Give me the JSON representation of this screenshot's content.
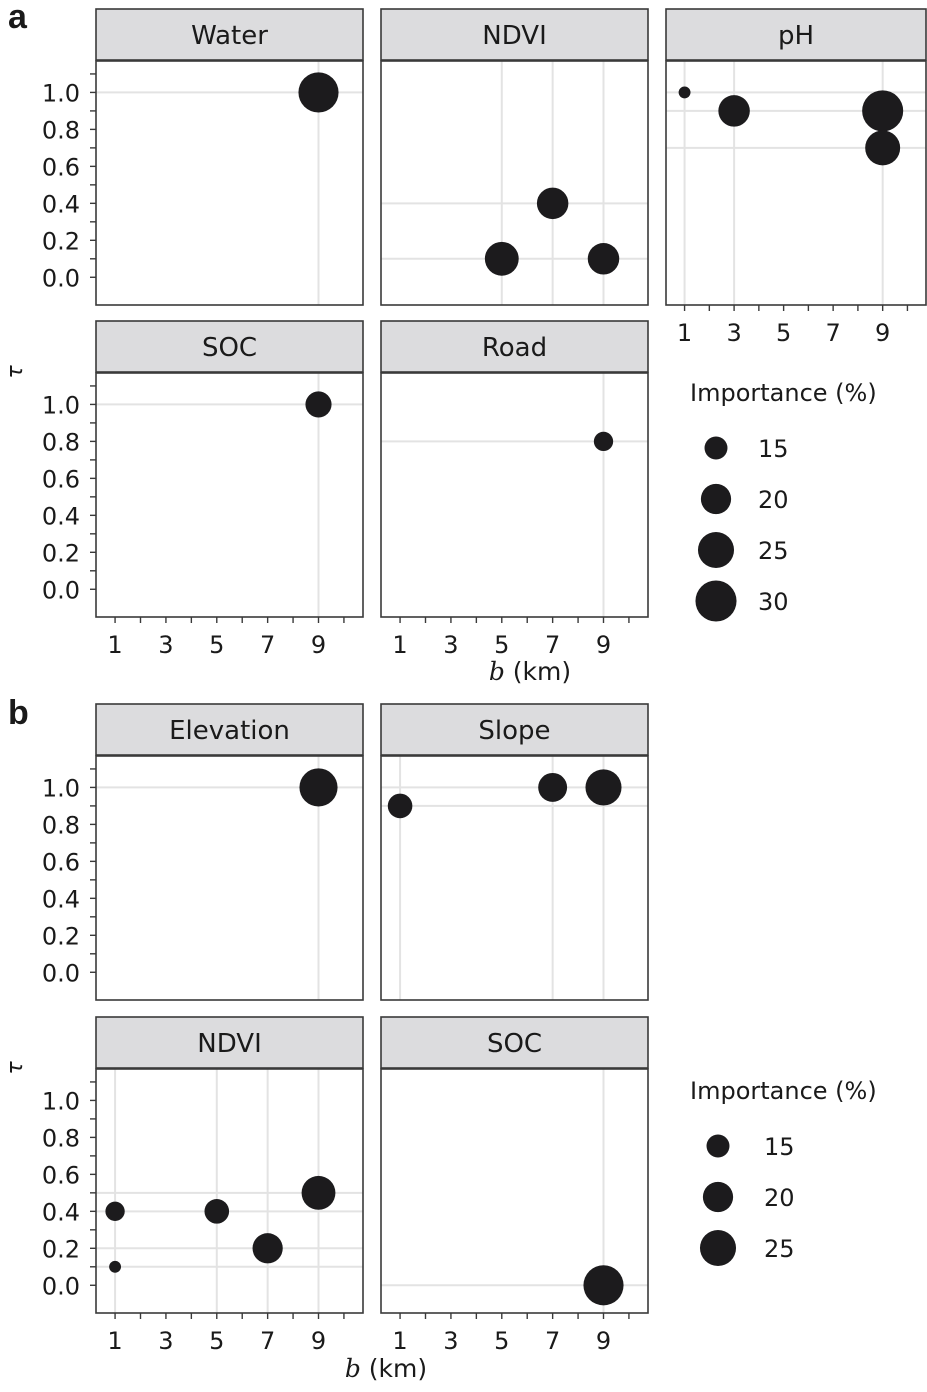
{
  "figure": {
    "panel_a_label": "a",
    "panel_b_label": "b"
  },
  "chart_data": [
    {
      "type": "scatter",
      "subfigure": "a",
      "xlabel_italic": "b",
      "xlabel_unit": " (km)",
      "ylabel": "τ",
      "xlim": [
        0.25,
        10.75
      ],
      "ylim": [
        -0.15,
        1.17
      ],
      "x_ticks": [
        1,
        3,
        5,
        7,
        9
      ],
      "y_ticks": [
        "0.0",
        "0.2",
        "0.4",
        "0.6",
        "0.8",
        "1.0"
      ],
      "grid": true,
      "legend": {
        "title": "Importance (%)",
        "entries": [
          15,
          20,
          25,
          30
        ],
        "position": "right"
      },
      "facets": [
        {
          "title": "Water",
          "points": [
            {
              "x": 9,
              "y": 1.0,
              "importance": 30
            }
          ]
        },
        {
          "title": "NDVI",
          "points": [
            {
              "x": 5,
              "y": 0.1,
              "importance": 24
            },
            {
              "x": 7,
              "y": 0.4,
              "importance": 22
            },
            {
              "x": 9,
              "y": 0.1,
              "importance": 22
            }
          ]
        },
        {
          "title": "pH",
          "points": [
            {
              "x": 1,
              "y": 1.0,
              "importance": 11
            },
            {
              "x": 3,
              "y": 0.9,
              "importance": 22
            },
            {
              "x": 9,
              "y": 0.9,
              "importance": 31
            },
            {
              "x": 9,
              "y": 0.7,
              "importance": 25
            }
          ]
        },
        {
          "title": "SOC",
          "points": [
            {
              "x": 9,
              "y": 1.0,
              "importance": 18
            }
          ]
        },
        {
          "title": "Road",
          "points": [
            {
              "x": 9,
              "y": 0.8,
              "importance": 14
            }
          ]
        }
      ]
    },
    {
      "type": "scatter",
      "subfigure": "b",
      "xlabel_italic": "b",
      "xlabel_unit": " (km)",
      "ylabel": "τ",
      "xlim": [
        0.25,
        10.75
      ],
      "ylim": [
        -0.15,
        1.17
      ],
      "x_ticks": [
        1,
        3,
        5,
        7,
        9
      ],
      "y_ticks": [
        "0.0",
        "0.2",
        "0.4",
        "0.6",
        "0.8",
        "1.0"
      ],
      "grid": true,
      "legend": {
        "title": "Importance (%)",
        "entries": [
          15,
          20,
          25
        ],
        "position": "right"
      },
      "facets": [
        {
          "title": "Elevation",
          "points": [
            {
              "x": 9,
              "y": 1.0,
              "importance": 28
            }
          ]
        },
        {
          "title": "Slope",
          "points": [
            {
              "x": 1,
              "y": 0.9,
              "importance": 17
            },
            {
              "x": 7,
              "y": 1.0,
              "importance": 20
            },
            {
              "x": 9,
              "y": 1.0,
              "importance": 26
            }
          ]
        },
        {
          "title": "NDVI",
          "points": [
            {
              "x": 1,
              "y": 0.4,
              "importance": 14
            },
            {
              "x": 1,
              "y": 0.1,
              "importance": 11
            },
            {
              "x": 5,
              "y": 0.4,
              "importance": 17
            },
            {
              "x": 7,
              "y": 0.2,
              "importance": 21
            },
            {
              "x": 9,
              "y": 0.5,
              "importance": 24
            }
          ]
        },
        {
          "title": "SOC",
          "points": [
            {
              "x": 9,
              "y": 0.0,
              "importance": 30
            }
          ]
        }
      ]
    }
  ]
}
